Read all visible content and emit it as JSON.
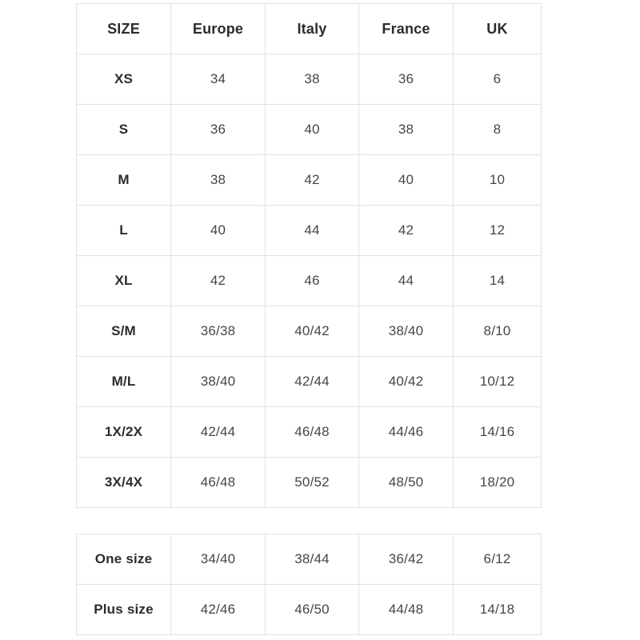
{
  "colors": {
    "background": "#ffffff",
    "border": "#e1e1e1",
    "header_text": "#2b2b33",
    "cell_text": "#45454d"
  },
  "size_table": {
    "columns": [
      "SIZE",
      "Europe",
      "Italy",
      "France",
      "UK"
    ],
    "rows": [
      {
        "label": "XS",
        "values": [
          "34",
          "38",
          "36",
          "6"
        ]
      },
      {
        "label": "S",
        "values": [
          "36",
          "40",
          "38",
          "8"
        ]
      },
      {
        "label": "M",
        "values": [
          "38",
          "42",
          "40",
          "10"
        ]
      },
      {
        "label": "L",
        "values": [
          "40",
          "44",
          "42",
          "12"
        ]
      },
      {
        "label": "XL",
        "values": [
          "42",
          "46",
          "44",
          "14"
        ]
      },
      {
        "label": "S/M",
        "values": [
          "36/38",
          "40/42",
          "38/40",
          "8/10"
        ]
      },
      {
        "label": "M/L",
        "values": [
          "38/40",
          "42/44",
          "40/42",
          "10/12"
        ]
      },
      {
        "label": "1X/2X",
        "values": [
          "42/44",
          "46/48",
          "44/46",
          "14/16"
        ]
      },
      {
        "label": "3X/4X",
        "values": [
          "46/48",
          "50/52",
          "48/50",
          "18/20"
        ]
      }
    ]
  },
  "special_table": {
    "rows": [
      {
        "label": "One size",
        "values": [
          "34/40",
          "38/44",
          "36/42",
          "6/12"
        ]
      },
      {
        "label": "Plus size",
        "values": [
          "42/46",
          "46/50",
          "44/48",
          "14/18"
        ]
      }
    ]
  }
}
